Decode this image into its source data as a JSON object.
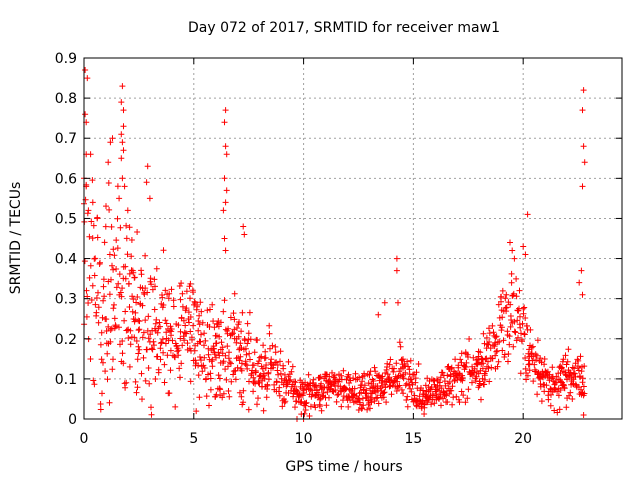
{
  "chart_data": {
    "type": "scatter",
    "title": "Day 072 of 2017, SRMTID for receiver maw1",
    "xlabel": "GPS time / hours",
    "ylabel": "SRMTID / TECUs",
    "xlim": [
      0,
      24.5
    ],
    "ylim": [
      0,
      0.9
    ],
    "x_ticks": [
      0,
      5,
      10,
      15,
      20
    ],
    "x_tick_labels": [
      "0",
      "5",
      "10",
      "15",
      "20"
    ],
    "y_ticks": [
      0,
      0.1,
      0.2,
      0.3,
      0.4,
      0.5,
      0.6,
      0.7,
      0.8,
      0.9
    ],
    "y_tick_labels": [
      "0",
      "0.1",
      "0.2",
      "0.3",
      "0.4",
      "0.5",
      "0.6",
      "0.7",
      "0.8",
      "0.9"
    ],
    "grid": true,
    "marker": "plus",
    "colors": {
      "series": "#ff0000",
      "grid": "#a0a0a0",
      "axes": "#000000"
    },
    "trend": {
      "x": [
        0,
        0.5,
        1,
        1.5,
        2,
        2.5,
        3,
        3.5,
        4,
        4.5,
        5,
        5.5,
        6,
        6.5,
        7,
        7.5,
        8,
        8.5,
        9,
        9.5,
        10,
        10.5,
        11,
        11.5,
        12,
        12.5,
        13,
        13.5,
        14,
        14.5,
        15,
        15.5,
        16,
        16.5,
        17,
        17.5,
        18,
        18.5,
        19,
        19.5,
        20,
        20.5,
        21,
        21.5,
        22,
        22.5,
        22.8
      ],
      "y": [
        0.42,
        0.33,
        0.3,
        0.32,
        0.3,
        0.26,
        0.24,
        0.22,
        0.2,
        0.23,
        0.24,
        0.16,
        0.15,
        0.18,
        0.17,
        0.14,
        0.12,
        0.13,
        0.09,
        0.07,
        0.065,
        0.07,
        0.075,
        0.09,
        0.075,
        0.065,
        0.075,
        0.09,
        0.1,
        0.12,
        0.08,
        0.05,
        0.06,
        0.09,
        0.1,
        0.12,
        0.13,
        0.16,
        0.21,
        0.28,
        0.22,
        0.13,
        0.1,
        0.09,
        0.1,
        0.12,
        0.06
      ]
    },
    "spread": {
      "x": [
        0,
        2,
        4,
        6,
        8,
        9.5,
        12,
        14,
        16,
        18,
        19.5,
        21,
        22.8
      ],
      "y": [
        0.19,
        0.14,
        0.1,
        0.09,
        0.06,
        0.035,
        0.03,
        0.04,
        0.03,
        0.05,
        0.07,
        0.04,
        0.04
      ]
    },
    "spikes": [
      {
        "x": 0.05,
        "y": 0.87
      },
      {
        "x": 0.15,
        "y": 0.85
      },
      {
        "x": 0.05,
        "y": 0.76
      },
      {
        "x": 0.1,
        "y": 0.74
      },
      {
        "x": 0.1,
        "y": 0.66
      },
      {
        "x": 0.3,
        "y": 0.66
      },
      {
        "x": 0.0,
        "y": 0.6
      },
      {
        "x": 0.1,
        "y": 0.58
      },
      {
        "x": 0.4,
        "y": 0.54
      },
      {
        "x": 0.2,
        "y": 0.52
      },
      {
        "x": 0.6,
        "y": 0.5
      },
      {
        "x": 1.2,
        "y": 0.69
      },
      {
        "x": 1.3,
        "y": 0.7
      },
      {
        "x": 1.1,
        "y": 0.64
      },
      {
        "x": 1.75,
        "y": 0.83
      },
      {
        "x": 1.7,
        "y": 0.79
      },
      {
        "x": 1.8,
        "y": 0.77
      },
      {
        "x": 1.8,
        "y": 0.73
      },
      {
        "x": 1.7,
        "y": 0.71
      },
      {
        "x": 1.75,
        "y": 0.69
      },
      {
        "x": 1.8,
        "y": 0.67
      },
      {
        "x": 1.7,
        "y": 0.65
      },
      {
        "x": 1.75,
        "y": 0.6
      },
      {
        "x": 1.85,
        "y": 0.58
      },
      {
        "x": 1.6,
        "y": 0.55
      },
      {
        "x": 2.9,
        "y": 0.63
      },
      {
        "x": 2.85,
        "y": 0.59
      },
      {
        "x": 3.0,
        "y": 0.55
      },
      {
        "x": 6.45,
        "y": 0.77
      },
      {
        "x": 6.4,
        "y": 0.74
      },
      {
        "x": 6.45,
        "y": 0.68
      },
      {
        "x": 6.5,
        "y": 0.66
      },
      {
        "x": 6.4,
        "y": 0.6
      },
      {
        "x": 6.5,
        "y": 0.57
      },
      {
        "x": 6.45,
        "y": 0.54
      },
      {
        "x": 6.35,
        "y": 0.52
      },
      {
        "x": 6.4,
        "y": 0.45
      },
      {
        "x": 6.45,
        "y": 0.42
      },
      {
        "x": 7.25,
        "y": 0.48
      },
      {
        "x": 7.3,
        "y": 0.46
      },
      {
        "x": 14.25,
        "y": 0.4
      },
      {
        "x": 14.25,
        "y": 0.37
      },
      {
        "x": 14.3,
        "y": 0.29
      },
      {
        "x": 13.7,
        "y": 0.29
      },
      {
        "x": 13.4,
        "y": 0.26
      },
      {
        "x": 20.2,
        "y": 0.51
      },
      {
        "x": 19.4,
        "y": 0.44
      },
      {
        "x": 19.5,
        "y": 0.42
      },
      {
        "x": 19.6,
        "y": 0.4
      },
      {
        "x": 20.0,
        "y": 0.43
      },
      {
        "x": 20.1,
        "y": 0.41
      },
      {
        "x": 22.75,
        "y": 0.82
      },
      {
        "x": 22.7,
        "y": 0.77
      },
      {
        "x": 22.75,
        "y": 0.68
      },
      {
        "x": 22.8,
        "y": 0.64
      },
      {
        "x": 22.7,
        "y": 0.58
      },
      {
        "x": 22.65,
        "y": 0.37
      },
      {
        "x": 22.55,
        "y": 0.34
      },
      {
        "x": 22.7,
        "y": 0.31
      },
      {
        "x": 10.0,
        "y": 0.0
      },
      {
        "x": 9.7,
        "y": 0.0
      },
      {
        "x": 22.75,
        "y": 0.01
      }
    ]
  }
}
